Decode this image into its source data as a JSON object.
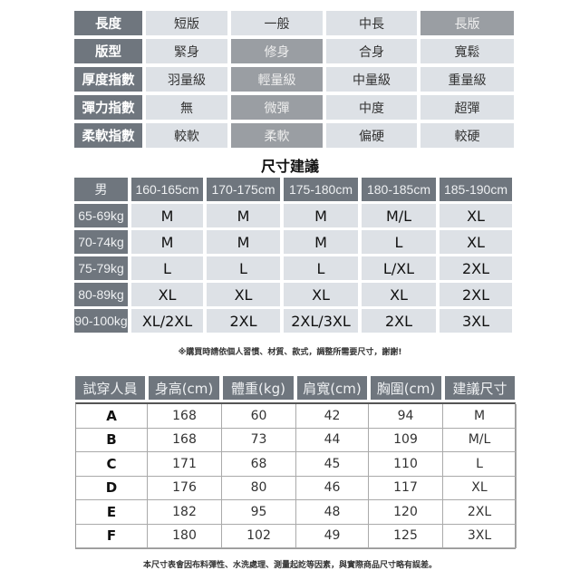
{
  "attributes": [
    {
      "label": "長度",
      "options": [
        "短版",
        "一般",
        "中長",
        "長版"
      ],
      "selected": 3
    },
    {
      "label": "版型",
      "options": [
        "緊身",
        "修身",
        "合身",
        "寬鬆"
      ],
      "selected": 1
    },
    {
      "label": "厚度指數",
      "options": [
        "羽量級",
        "輕量級",
        "中量級",
        "重量級"
      ],
      "selected": 1
    },
    {
      "label": "彈力指數",
      "options": [
        "無",
        "微彈",
        "中度",
        "超彈"
      ],
      "selected": 1
    },
    {
      "label": "柔軟指數",
      "options": [
        "較軟",
        "柔軟",
        "偏硬",
        "較硬"
      ],
      "selected": 1
    }
  ],
  "size_title": "尺寸建議",
  "size_chart": {
    "corner": "男",
    "heights": [
      "160-165cm",
      "170-175cm",
      "175-180cm",
      "180-185cm",
      "185-190cm"
    ],
    "rows": [
      {
        "weight": "65-69kg",
        "sizes": [
          "M",
          "M",
          "M",
          "M/L",
          "XL"
        ]
      },
      {
        "weight": "70-74kg",
        "sizes": [
          "M",
          "M",
          "M",
          "L",
          "XL"
        ]
      },
      {
        "weight": "75-79kg",
        "sizes": [
          "L",
          "L",
          "L",
          "L/XL",
          "2XL"
        ]
      },
      {
        "weight": "80-89kg",
        "sizes": [
          "XL",
          "XL",
          "XL",
          "XL",
          "2XL"
        ]
      },
      {
        "weight": "90-100kg",
        "sizes": [
          "XL/2XL",
          "2XL",
          "2XL/3XL",
          "2XL",
          "3XL"
        ]
      }
    ]
  },
  "size_note": "※購買時請依個人習慣、材質、款式，調整所需要尺寸，謝謝!",
  "tryon": {
    "headers": [
      "試穿人員",
      "身高(cm)",
      "體重(kg)",
      "肩寬(cm)",
      "胸圍(cm)",
      "建議尺寸"
    ],
    "rows": [
      [
        "A",
        "168",
        "60",
        "42",
        "94",
        "M"
      ],
      [
        "B",
        "168",
        "73",
        "44",
        "109",
        "M/L"
      ],
      [
        "C",
        "171",
        "68",
        "45",
        "110",
        "L"
      ],
      [
        "D",
        "176",
        "80",
        "46",
        "117",
        "XL"
      ],
      [
        "E",
        "182",
        "95",
        "48",
        "120",
        "2XL"
      ],
      [
        "F",
        "180",
        "102",
        "49",
        "125",
        "3XL"
      ]
    ]
  },
  "footer_note": "本尺寸表會因布料彈性、水洗處理、測量起訖等因素，與實際商品尺寸略有誤差。"
}
